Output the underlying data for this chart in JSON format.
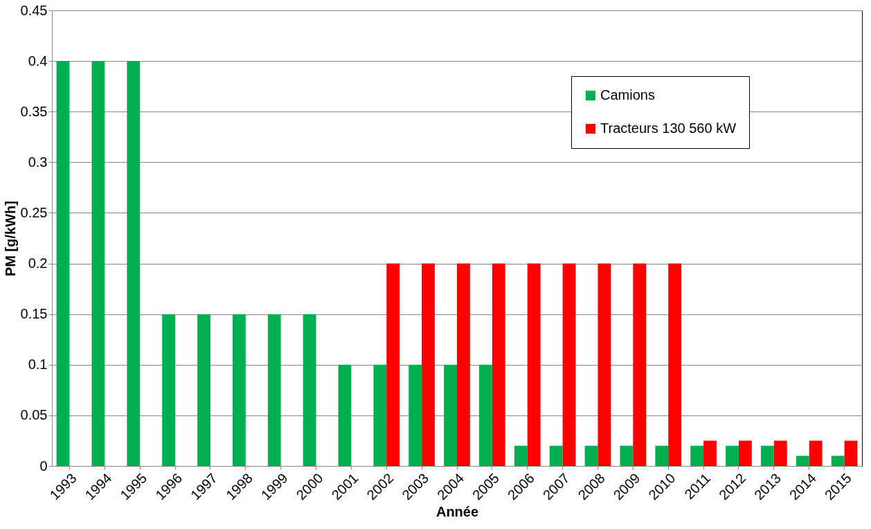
{
  "chart_data": {
    "type": "bar",
    "xlabel": "Année",
    "ylabel": "PM [g/kWh]",
    "categories": [
      "1993",
      "1994",
      "1995",
      "1996",
      "1997",
      "1998",
      "1999",
      "2000",
      "2001",
      "2002",
      "2003",
      "2004",
      "2005",
      "2006",
      "2007",
      "2008",
      "2009",
      "2010",
      "2011",
      "2012",
      "2013",
      "2014",
      "2015"
    ],
    "series": [
      {
        "name": "Camions",
        "color": "#00b050",
        "values": [
          0.4,
          0.4,
          0.4,
          0.15,
          0.15,
          0.15,
          0.15,
          0.15,
          0.1,
          0.1,
          0.1,
          0.1,
          0.1,
          0.02,
          0.02,
          0.02,
          0.02,
          0.02,
          0.02,
          0.02,
          0.02,
          0.01,
          0.01
        ]
      },
      {
        "name": "Tracteurs 130 560 kW",
        "color": "#ff0000",
        "values": [
          null,
          null,
          null,
          null,
          null,
          null,
          null,
          null,
          null,
          0.2,
          0.2,
          0.2,
          0.2,
          0.2,
          0.2,
          0.2,
          0.2,
          0.2,
          0.025,
          0.025,
          0.025,
          0.025,
          0.025
        ]
      }
    ],
    "ylim": [
      0,
      0.45
    ],
    "yticks": [
      0,
      0.05,
      0.1,
      0.15,
      0.2,
      0.25,
      0.3,
      0.35,
      0.4,
      0.45
    ],
    "grid": "y",
    "legend": "top right"
  }
}
